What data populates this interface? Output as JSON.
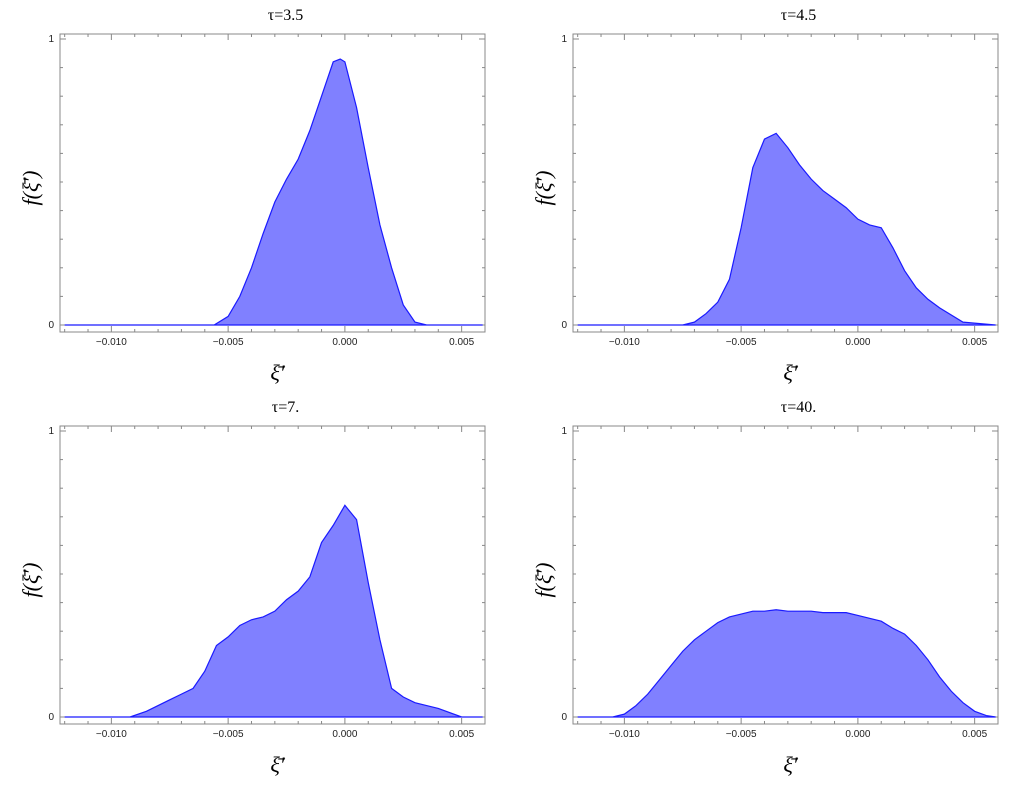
{
  "chart_data": [
    {
      "type": "area",
      "title": "τ=3.5",
      "xlabel": "ξ̄′",
      "ylabel": "f(ξ̄′)",
      "xlim": [
        -0.0122,
        0.006
      ],
      "ylim": [
        0,
        1
      ],
      "x_ticks": [
        -0.01,
        -0.005,
        0.0,
        0.005
      ],
      "x_tick_labels": [
        "−0.010",
        "−0.005",
        "0.000",
        "0.005"
      ],
      "y_ticks": [
        0,
        1
      ],
      "y_tick_labels": [
        "0",
        "1"
      ],
      "color": "#8080FF",
      "x": [
        -0.012,
        -0.0056,
        -0.005,
        -0.0045,
        -0.004,
        -0.0035,
        -0.003,
        -0.0025,
        -0.002,
        -0.0015,
        -0.001,
        -0.0005,
        -0.0002,
        0.0,
        0.0005,
        0.001,
        0.0015,
        0.002,
        0.0025,
        0.003,
        0.0035,
        0.0059
      ],
      "y": [
        0,
        0,
        0.03,
        0.1,
        0.2,
        0.32,
        0.43,
        0.51,
        0.58,
        0.68,
        0.8,
        0.92,
        0.93,
        0.92,
        0.76,
        0.55,
        0.35,
        0.2,
        0.07,
        0.01,
        0,
        0
      ]
    },
    {
      "type": "area",
      "title": "τ=4.5",
      "xlabel": "ξ̄′",
      "ylabel": "f(ξ̄′)",
      "xlim": [
        -0.0122,
        0.006
      ],
      "ylim": [
        0,
        1
      ],
      "x_ticks": [
        -0.01,
        -0.005,
        0.0,
        0.005
      ],
      "x_tick_labels": [
        "−0.010",
        "−0.005",
        "0.000",
        "0.005"
      ],
      "y_ticks": [
        0,
        1
      ],
      "y_tick_labels": [
        "0",
        "1"
      ],
      "color": "#8080FF",
      "x": [
        -0.012,
        -0.0075,
        -0.007,
        -0.0065,
        -0.006,
        -0.0055,
        -0.005,
        -0.0045,
        -0.004,
        -0.0035,
        -0.003,
        -0.0025,
        -0.002,
        -0.0015,
        -0.001,
        -0.0005,
        0.0,
        0.0005,
        0.001,
        0.0015,
        0.002,
        0.0025,
        0.003,
        0.0035,
        0.0045,
        0.0059
      ],
      "y": [
        0,
        0,
        0.01,
        0.04,
        0.08,
        0.16,
        0.34,
        0.55,
        0.65,
        0.67,
        0.62,
        0.56,
        0.51,
        0.47,
        0.44,
        0.41,
        0.37,
        0.35,
        0.34,
        0.27,
        0.19,
        0.13,
        0.09,
        0.06,
        0.01,
        0
      ]
    },
    {
      "type": "area",
      "title": "τ=7.",
      "xlabel": "ξ̄′",
      "ylabel": "f(ξ̄′)",
      "xlim": [
        -0.0122,
        0.006
      ],
      "ylim": [
        0,
        1
      ],
      "x_ticks": [
        -0.01,
        -0.005,
        0.0,
        0.005
      ],
      "x_tick_labels": [
        "−0.010",
        "−0.005",
        "0.000",
        "0.005"
      ],
      "y_ticks": [
        0,
        1
      ],
      "y_tick_labels": [
        "0",
        "1"
      ],
      "color": "#8080FF",
      "x": [
        -0.012,
        -0.0092,
        -0.0085,
        -0.008,
        -0.0075,
        -0.007,
        -0.0065,
        -0.006,
        -0.0055,
        -0.005,
        -0.0045,
        -0.004,
        -0.0035,
        -0.003,
        -0.0025,
        -0.002,
        -0.0015,
        -0.001,
        -0.0005,
        0.0,
        0.0005,
        0.001,
        0.0015,
        0.002,
        0.0025,
        0.003,
        0.0035,
        0.004,
        0.005,
        0.0059
      ],
      "y": [
        0,
        0,
        0.02,
        0.04,
        0.06,
        0.08,
        0.1,
        0.16,
        0.25,
        0.28,
        0.32,
        0.34,
        0.35,
        0.37,
        0.41,
        0.44,
        0.49,
        0.61,
        0.67,
        0.74,
        0.69,
        0.47,
        0.27,
        0.1,
        0.07,
        0.05,
        0.04,
        0.03,
        0,
        0
      ]
    },
    {
      "type": "area",
      "title": "τ=40.",
      "xlabel": "ξ̄′",
      "ylabel": "f(ξ̄′)",
      "xlim": [
        -0.0122,
        0.006
      ],
      "ylim": [
        0,
        1
      ],
      "x_ticks": [
        -0.01,
        -0.005,
        0.0,
        0.005
      ],
      "x_tick_labels": [
        "−0.010",
        "−0.005",
        "0.000",
        "0.005"
      ],
      "y_ticks": [
        0,
        1
      ],
      "y_tick_labels": [
        "0",
        "1"
      ],
      "color": "#8080FF",
      "x": [
        -0.012,
        -0.0105,
        -0.01,
        -0.0095,
        -0.009,
        -0.0085,
        -0.008,
        -0.0075,
        -0.007,
        -0.0065,
        -0.006,
        -0.0055,
        -0.005,
        -0.0045,
        -0.004,
        -0.0035,
        -0.003,
        -0.0025,
        -0.002,
        -0.0015,
        -0.001,
        -0.0005,
        0.0,
        0.0005,
        0.001,
        0.0015,
        0.002,
        0.0025,
        0.003,
        0.0035,
        0.004,
        0.0045,
        0.005,
        0.0055,
        0.0059
      ],
      "y": [
        0,
        0,
        0.01,
        0.04,
        0.08,
        0.13,
        0.18,
        0.23,
        0.27,
        0.3,
        0.33,
        0.35,
        0.36,
        0.37,
        0.37,
        0.375,
        0.37,
        0.37,
        0.37,
        0.365,
        0.365,
        0.365,
        0.355,
        0.345,
        0.335,
        0.31,
        0.29,
        0.25,
        0.2,
        0.14,
        0.09,
        0.05,
        0.02,
        0.005,
        0
      ]
    }
  ]
}
